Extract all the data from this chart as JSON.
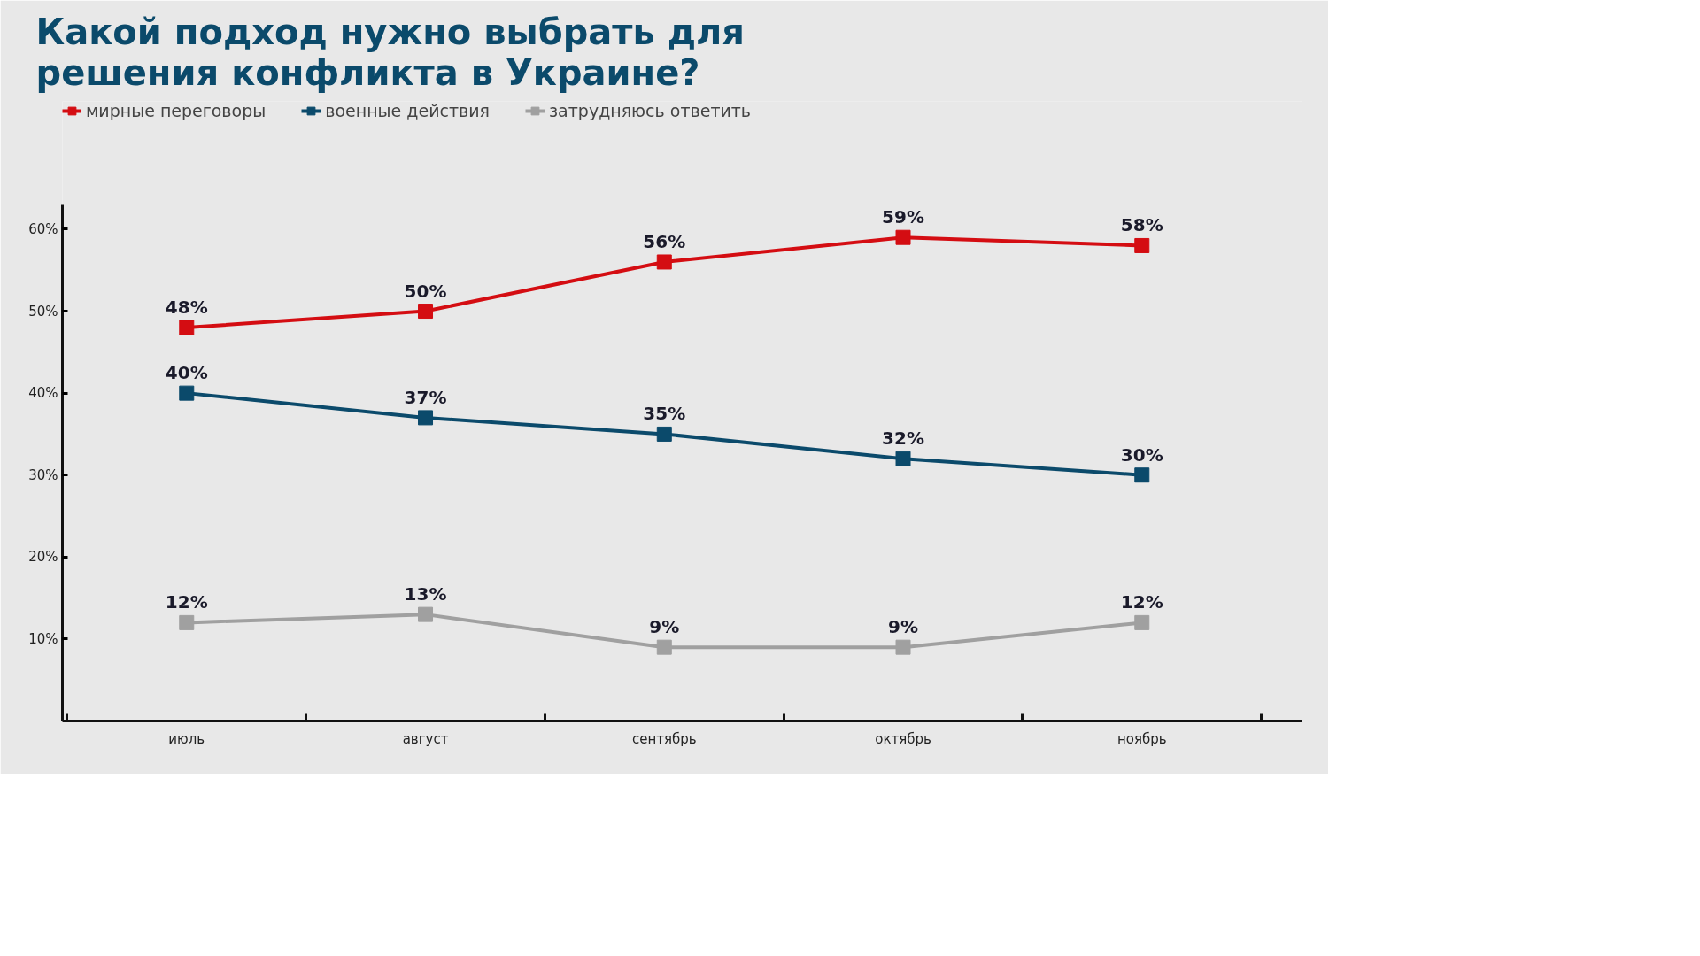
{
  "chart_data": {
    "type": "line",
    "title": "Какой подход нужно выбрать для решения конфликта в Украине?",
    "categories": [
      "июль",
      "август",
      "сентябрь",
      "октябрь",
      "ноябрь"
    ],
    "series": [
      {
        "name": "мирные переговоры",
        "color": "#d40d12",
        "values": [
          48,
          50,
          56,
          59,
          58
        ],
        "value_labels": [
          "48%",
          "50%",
          "56%",
          "59%",
          "58%"
        ]
      },
      {
        "name": "военные действия",
        "color": "#0b4a6b",
        "values": [
          40,
          37,
          35,
          32,
          30
        ],
        "value_labels": [
          "40%",
          "37%",
          "35%",
          "32%",
          "30%"
        ]
      },
      {
        "name": "затрудняюсь ответить",
        "color": "#a0a0a0",
        "values": [
          12,
          13,
          9,
          9,
          12
        ],
        "value_labels": [
          "12%",
          "13%",
          "9%",
          "9%",
          "12%"
        ]
      }
    ],
    "ylim": [
      0,
      63
    ],
    "yticks": [
      {
        "value": 10,
        "label": "10%"
      },
      {
        "value": 20,
        "label": "20%"
      },
      {
        "value": 30,
        "label": "30%"
      },
      {
        "value": 40,
        "label": "40%"
      },
      {
        "value": 50,
        "label": "50%"
      },
      {
        "value": 60,
        "label": "60%"
      }
    ],
    "legend": "top left",
    "marker": "square",
    "line_style": "solid"
  }
}
